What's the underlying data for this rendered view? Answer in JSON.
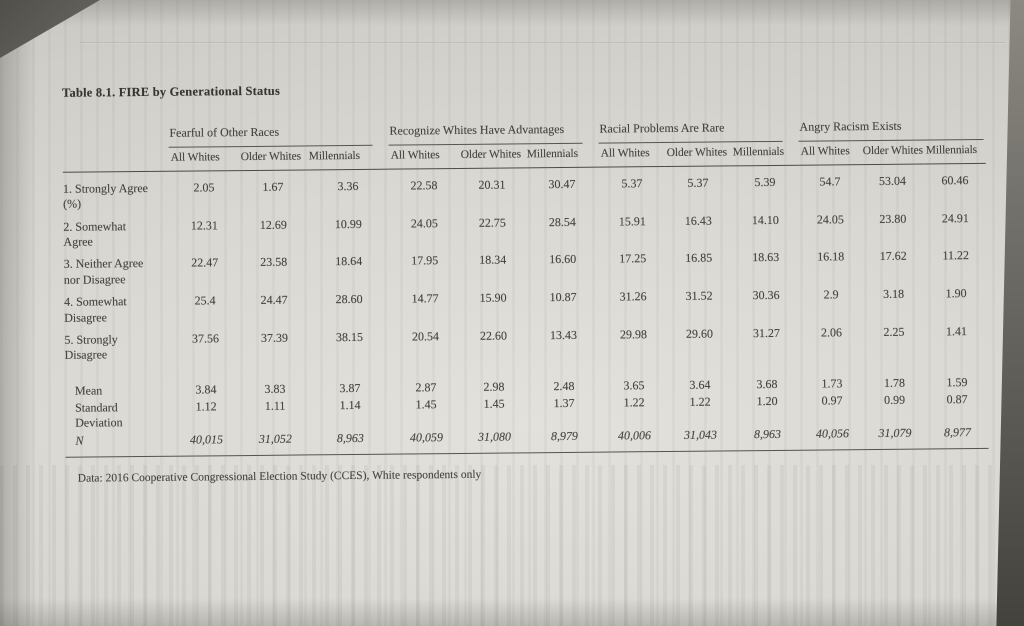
{
  "page": {
    "title": "Table 8.1.  FIRE by Generational Status",
    "footnote": "Data: 2016 Cooperative Congressional Election Study (CCES), White respondents only"
  },
  "colors": {
    "paper": "#dbd9d3",
    "ink": "#45433c"
  },
  "table": {
    "groups": [
      "Fearful of Other Races",
      "Recognize Whites Have Advantages",
      "Racial Problems Are Rare",
      "Angry Racism Exists"
    ],
    "subheaders": [
      "All Whites",
      "Older Whites",
      "Millennials",
      "All Whites",
      "Older Whites",
      "Millennials",
      "All Whites",
      "Older Whites",
      "Millennials",
      "All Whites",
      "Older Whites",
      "Millennials"
    ],
    "rows": [
      {
        "label": "1. Strongly Agree (%)",
        "values": [
          "2.05",
          "1.67",
          "3.36",
          "22.58",
          "20.31",
          "30.47",
          "5.37",
          "5.37",
          "5.39",
          "54.7",
          "53.04",
          "60.46"
        ]
      },
      {
        "label": "2. Somewhat Agree",
        "values": [
          "12.31",
          "12.69",
          "10.99",
          "24.05",
          "22.75",
          "28.54",
          "15.91",
          "16.43",
          "14.10",
          "24.05",
          "23.80",
          "24.91"
        ]
      },
      {
        "label": "3. Neither Agree nor Disagree",
        "values": [
          "22.47",
          "23.58",
          "18.64",
          "17.95",
          "18.34",
          "16.60",
          "17.25",
          "16.85",
          "18.63",
          "16.18",
          "17.62",
          "11.22"
        ]
      },
      {
        "label": "4. Somewhat Disagree",
        "values": [
          "25.4",
          "24.47",
          "28.60",
          "14.77",
          "15.90",
          "10.87",
          "31.26",
          "31.52",
          "30.36",
          "2.9",
          "3.18",
          "1.90"
        ]
      },
      {
        "label": "5. Strongly Disagree",
        "values": [
          "37.56",
          "37.39",
          "38.15",
          "20.54",
          "22.60",
          "13.43",
          "29.98",
          "29.60",
          "31.27",
          "2.06",
          "2.25",
          "1.41"
        ]
      }
    ],
    "stats": [
      {
        "label": "Mean",
        "values": [
          "3.84",
          "3.83",
          "3.87",
          "2.87",
          "2.98",
          "2.48",
          "3.65",
          "3.64",
          "3.68",
          "1.73",
          "1.78",
          "1.59"
        ]
      },
      {
        "label": "Standard Deviation",
        "values": [
          "1.12",
          "1.11",
          "1.14",
          "1.45",
          "1.45",
          "1.37",
          "1.22",
          "1.22",
          "1.20",
          "0.97",
          "0.99",
          "0.87"
        ]
      },
      {
        "label": "N",
        "italic": true,
        "values": [
          "40,015",
          "31,052",
          "8,963",
          "40,059",
          "31,080",
          "8,979",
          "40,006",
          "31,043",
          "8,963",
          "40,056",
          "31,079",
          "8,977"
        ]
      }
    ]
  }
}
